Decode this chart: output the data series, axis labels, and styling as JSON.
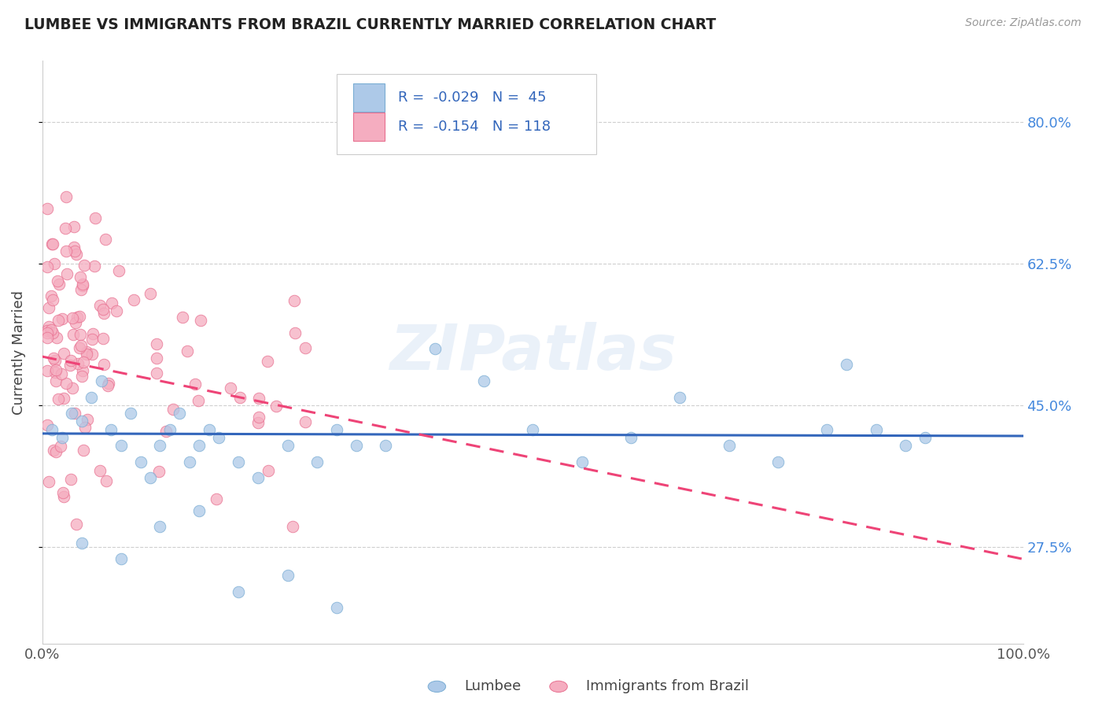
{
  "title": "LUMBEE VS IMMIGRANTS FROM BRAZIL CURRENTLY MARRIED CORRELATION CHART",
  "source_text": "Source: ZipAtlas.com",
  "ylabel": "Currently Married",
  "xlim": [
    0.0,
    1.0
  ],
  "ylim": [
    0.155,
    0.875
  ],
  "yticks": [
    0.275,
    0.45,
    0.625,
    0.8
  ],
  "ytick_labels": [
    "27.5%",
    "45.0%",
    "62.5%",
    "80.0%"
  ],
  "xticks": [
    0.0,
    1.0
  ],
  "xtick_labels": [
    "0.0%",
    "100.0%"
  ],
  "lumbee_color": "#adc9e8",
  "brazil_color": "#f5adc0",
  "lumbee_edge": "#7aadd4",
  "brazil_edge": "#e87090",
  "trend_lumbee_color": "#3366bb",
  "trend_brazil_color": "#ee4477",
  "legend_R_lumbee": "R = -0.029",
  "legend_N_lumbee": "N =  45",
  "legend_R_brazil": "R = -0.154",
  "legend_N_brazil": "N = 118",
  "watermark": "ZIPatlas",
  "grid_color": "#bbbbbb",
  "title_color": "#222222",
  "source_color": "#999999",
  "ytick_color": "#4488dd",
  "xtick_color": "#555555"
}
